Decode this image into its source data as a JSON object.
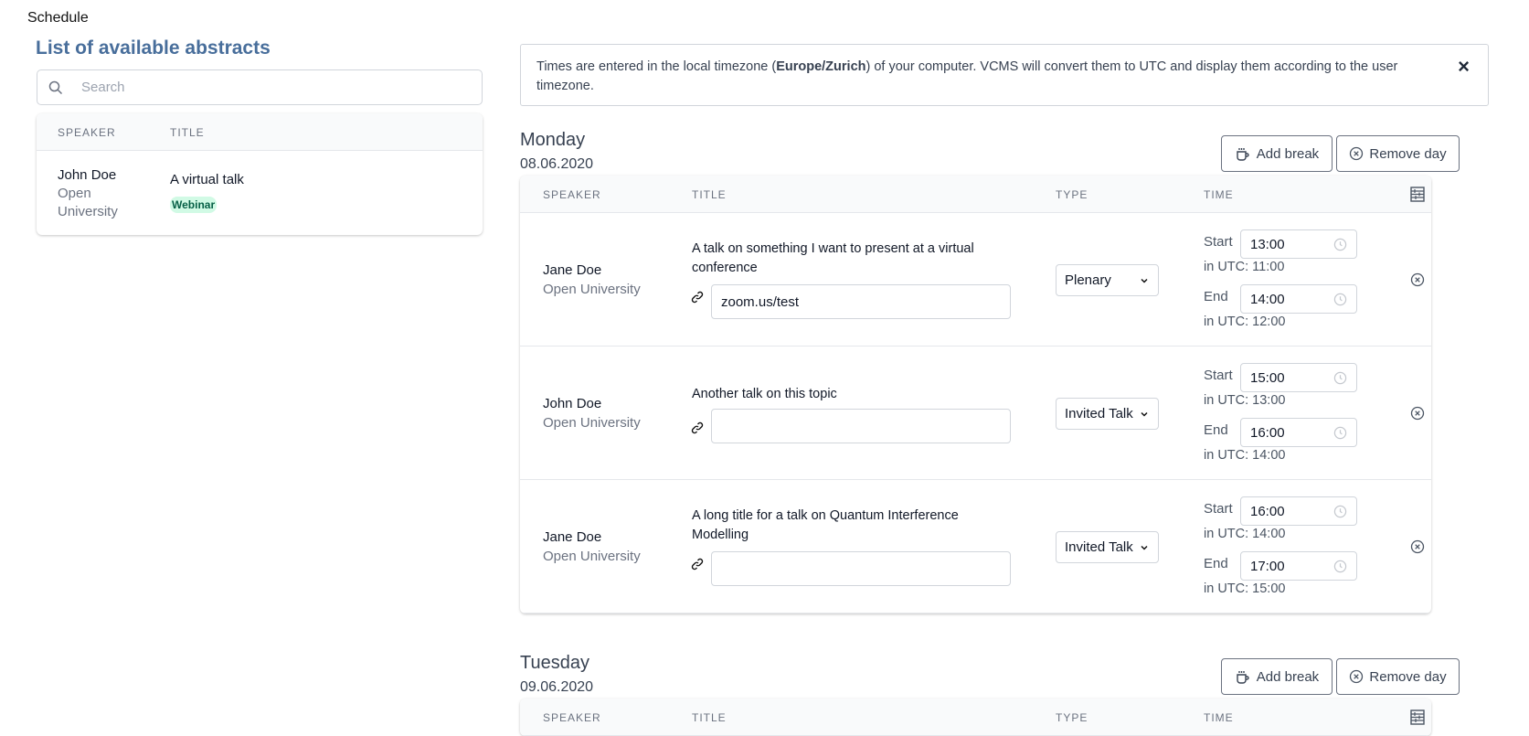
{
  "page_title": "Schedule",
  "abstracts": {
    "heading": "List of available abstracts",
    "search_placeholder": "Search",
    "columns": [
      "SPEAKER",
      "TITLE"
    ],
    "items": [
      {
        "speaker": "John Doe",
        "affiliation_l1": "Open",
        "affiliation_l2": "University",
        "title": "A virtual talk",
        "badge": "Webinar"
      }
    ]
  },
  "alert": {
    "pre": "Times are entered in the local timezone (",
    "tz": "Europe/Zurich",
    "post": ") of your computer. VCMS will convert them to UTC and display them according to the user timezone.",
    "close": "×"
  },
  "labels": {
    "add_break": "Add break",
    "remove_day": "Remove day",
    "start": "Start",
    "end": "End"
  },
  "columns": [
    "SPEAKER",
    "TITLE",
    "TYPE",
    "TIME"
  ],
  "days": [
    {
      "name": "Monday",
      "date": "08.06.2020",
      "rows": [
        {
          "speaker": "Jane Doe",
          "affiliation": "Open University",
          "title_l1": "A talk on something I want to present at a virtual",
          "title_l2": "conference",
          "link": "zoom.us/test",
          "type": "Plenary",
          "start": "13:00",
          "start_utc": "in UTC: 11:00",
          "end": "14:00",
          "end_utc": "in UTC: 12:00"
        },
        {
          "speaker": "John Doe",
          "affiliation": "Open University",
          "title_l1": "Another talk on this topic",
          "title_l2": "",
          "link": "",
          "type": "Invited Talk",
          "start": "15:00",
          "start_utc": "in UTC: 13:00",
          "end": "16:00",
          "end_utc": "in UTC: 14:00"
        },
        {
          "speaker": "Jane Doe",
          "affiliation": "Open University",
          "title_l1": "A long title for a talk on Quantum Interference",
          "title_l2": "Modelling",
          "link": "",
          "type": "Invited Talk",
          "start": "16:00",
          "start_utc": "in UTC: 14:00",
          "end": "17:00",
          "end_utc": "in UTC: 15:00"
        }
      ]
    },
    {
      "name": "Tuesday",
      "date": "09.06.2020",
      "rows": []
    }
  ],
  "colors": {
    "heading": "#486e9b",
    "badge_bg": "#d1fae5",
    "badge_fg": "#065f46"
  }
}
